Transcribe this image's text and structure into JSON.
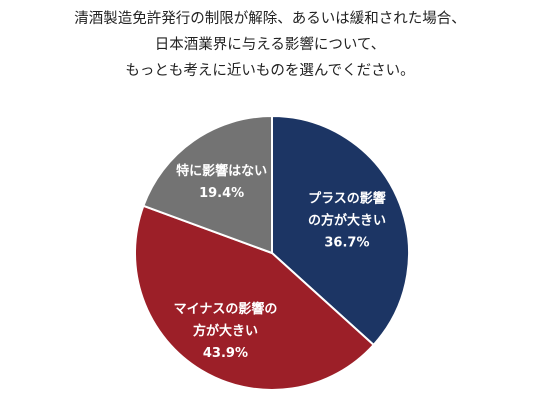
{
  "title_lines": [
    "清酒製造免許発行の制限が解除、あるいは緩和された場合、",
    "日本酒業界に与える影響について、",
    "もっとも考えに近いものを選んでください。"
  ],
  "chart_data": {
    "type": "pie",
    "unit": "%",
    "slices": [
      {
        "label_lines": [
          "プラスの影響",
          "の方が大きい"
        ],
        "value": 36.7,
        "value_text": "36.7%",
        "color": "#1c3564"
      },
      {
        "label_lines": [
          "マイナスの影響の",
          "方が大きい"
        ],
        "value": 43.9,
        "value_text": "43.9%",
        "color": "#9c1f28"
      },
      {
        "label_lines": [
          "特に影響はない"
        ],
        "value": 19.4,
        "value_text": "19.4%",
        "color": "#737373"
      }
    ]
  }
}
